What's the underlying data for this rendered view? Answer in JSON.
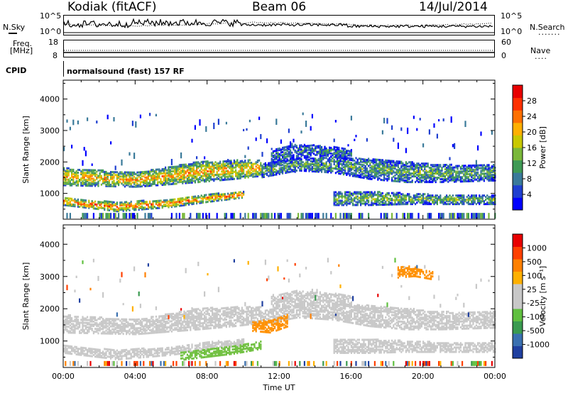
{
  "header": {
    "station": "Kodiak (fitACF)",
    "beam": "Beam 06",
    "date": "14/Jul/2014"
  },
  "strip_labels": {
    "nsky": "N.Sky",
    "nsearch": "N.Search",
    "freq": "Freq.",
    "freq_unit": "[MHz]",
    "nave": "Nave",
    "cpid": "CPID",
    "cpid_value": "normalsound (fast) 157 RF"
  },
  "strip_ticks": {
    "noise_left": [
      "10^5",
      "10^0"
    ],
    "noise_right": [
      "10^5",
      "10^0"
    ],
    "freq_left": [
      "18",
      "8"
    ],
    "nave_right": [
      "60",
      "0"
    ]
  },
  "chart_data": [
    {
      "type": "heatmap",
      "panel": "power",
      "ylabel": "Slant Range [km]",
      "xlabel": "",
      "ylim": [
        180,
        4600
      ],
      "yticks": [
        1000,
        2000,
        3000,
        4000
      ],
      "colorbar_label": "Power [dB]",
      "colorbar_ticks": [
        "28",
        "24",
        "20",
        "16",
        "12",
        "8",
        "4"
      ],
      "colorscale": [
        "#0000ff",
        "#1f3fd0",
        "#3a7a9a",
        "#3f9a55",
        "#7ab83a",
        "#c8c800",
        "#ffb000",
        "#ff7000",
        "#ff3000",
        "#e80000"
      ],
      "bands": [
        {
          "t": [
            0,
            4,
            7.5,
            9.5,
            11
          ],
          "lo": [
            1250,
            1200,
            1350,
            1450,
            1550
          ],
          "hi": [
            1800,
            1650,
            2000,
            2050,
            2050
          ],
          "level": 0.62
        },
        {
          "t": [
            0,
            3,
            6,
            8,
            10
          ],
          "lo": [
            620,
            420,
            560,
            720,
            860
          ],
          "hi": [
            860,
            700,
            820,
            960,
            1050
          ],
          "level": 0.72
        },
        {
          "t": [
            11,
            13,
            15,
            17,
            19,
            21,
            24
          ],
          "lo": [
            1500,
            1720,
            1650,
            1450,
            1350,
            1350,
            1400
          ],
          "hi": [
            1950,
            2100,
            2150,
            2100,
            2000,
            1900,
            1900
          ],
          "level": 0.35
        },
        {
          "t": [
            15,
            17,
            19,
            21,
            24
          ],
          "lo": [
            620,
            620,
            650,
            650,
            650
          ],
          "hi": [
            1050,
            1050,
            1000,
            950,
            950
          ],
          "level": 0.4
        },
        {
          "t": [
            11.5,
            13,
            14.5,
            16
          ],
          "lo": [
            1900,
            2100,
            2200,
            2050
          ],
          "hi": [
            2400,
            2550,
            2500,
            2400
          ],
          "level": 0.25
        }
      ]
    },
    {
      "type": "heatmap",
      "panel": "velocity",
      "ylabel": "Slant Range [km]",
      "xlabel": "Time UT",
      "ylim": [
        180,
        4600
      ],
      "yticks": [
        1000,
        2000,
        3000,
        4000
      ],
      "colorbar_label": "Velocity [m s^-1]",
      "colorbar_ticks": [
        "1000",
        "500",
        "100",
        "25",
        "-25",
        "-100",
        "-500",
        "-1000"
      ],
      "colorscale": [
        "#2040a0",
        "#3a70b0",
        "#3a9a50",
        "#60c040",
        "#c8c8c8",
        "#c8c8c8",
        "#ffb000",
        "#ff8000",
        "#ff4000",
        "#e80000"
      ],
      "xticks": [
        "00:00",
        "04:00",
        "08:00",
        "12:00",
        "16:00",
        "20:00",
        "00:00"
      ],
      "xrange_hours": [
        0,
        24
      ],
      "features": [
        {
          "t": [
            10.5,
            11.5,
            12.5
          ],
          "lo": [
            1300,
            1250,
            1450
          ],
          "hi": [
            1600,
            1650,
            1850
          ],
          "color": "#ff9000"
        },
        {
          "t": [
            6.5,
            8,
            9.5,
            11
          ],
          "lo": [
            400,
            500,
            600,
            750
          ],
          "hi": [
            650,
            750,
            850,
            1000
          ],
          "color": "#70c040"
        },
        {
          "t": [
            18.5,
            19.5,
            20.5
          ],
          "lo": [
            2950,
            3000,
            2900
          ],
          "hi": [
            3300,
            3300,
            3150
          ],
          "color": "#ff9000"
        }
      ]
    }
  ]
}
